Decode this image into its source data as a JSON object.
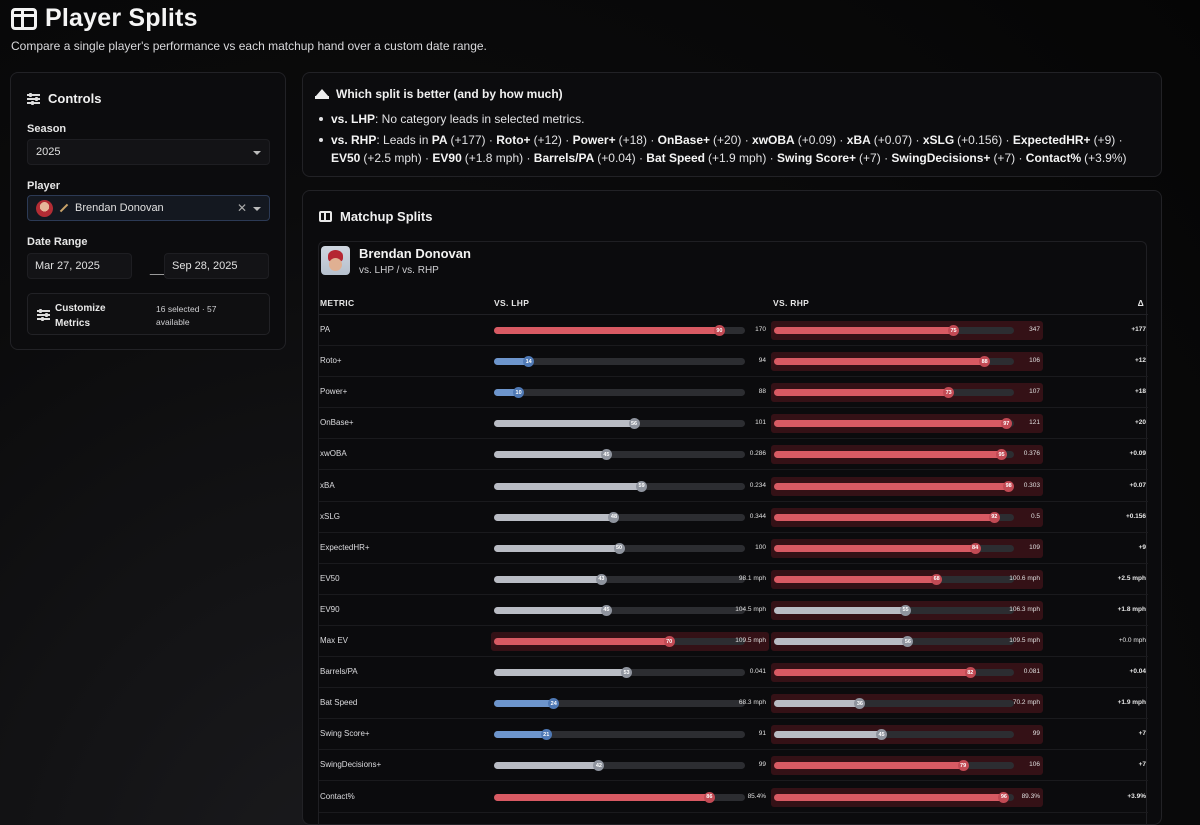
{
  "header": {
    "title": "Player Splits",
    "subtitle": "Compare a single player's performance vs each matchup hand over a custom date range."
  },
  "controls": {
    "title": "Controls",
    "season_label": "Season",
    "season_value": "2025",
    "player_label": "Player",
    "player_value": "Brendan Donovan",
    "date_label": "Date Range",
    "date_start": "Mar 27, 2025",
    "date_end": "Sep 28, 2025",
    "customize_label": "Customize Metrics",
    "customize_status": "16 selected · 57 available"
  },
  "better": {
    "title": "Which split is better (and by how much)",
    "lhp_label": "vs. LHP",
    "lhp_text": ": No category leads in selected metrics.",
    "rhp_label": "vs. RHP",
    "rhp_prefix": ": Leads in ",
    "rhp_leads": [
      {
        "metric": "PA",
        "delta": "(+177)"
      },
      {
        "metric": "Roto+",
        "delta": "(+12)"
      },
      {
        "metric": "Power+",
        "delta": "(+18)"
      },
      {
        "metric": "OnBase+",
        "delta": "(+20)"
      },
      {
        "metric": "xwOBA",
        "delta": "(+0.09)"
      },
      {
        "metric": "xBA",
        "delta": "(+0.07)"
      },
      {
        "metric": "xSLG",
        "delta": "(+0.156)"
      },
      {
        "metric": "ExpectedHR+",
        "delta": "(+9)"
      },
      {
        "metric": "EV50",
        "delta": "(+2.5 mph)"
      },
      {
        "metric": "EV90",
        "delta": "(+1.8 mph)"
      },
      {
        "metric": "Barrels/PA",
        "delta": "(+0.04)"
      },
      {
        "metric": "Bat Speed",
        "delta": "(+1.9 mph)"
      },
      {
        "metric": "Swing Score+",
        "delta": "(+7)"
      },
      {
        "metric": "SwingDecisions+",
        "delta": "(+7)"
      },
      {
        "metric": "Contact%",
        "delta": "(+3.9%)"
      }
    ]
  },
  "matchup": {
    "title": "Matchup Splits",
    "player_name": "Brendan Donovan",
    "player_sub": "vs. LHP / vs. RHP",
    "col_metric": "METRIC",
    "col_lhp": "VS. LHP",
    "col_rhp": "VS. RHP",
    "col_delta": "Δ",
    "colors": {
      "red": "#d85a63",
      "gray": "#b9bcc4",
      "blue": "#6d95cc"
    },
    "rows": [
      {
        "metric": "PA",
        "lhp_pct": 90,
        "lhp_val": "170",
        "lhp_color": "red",
        "rhp_pct": 75,
        "rhp_val": "347",
        "rhp_color": "red",
        "delta": "+177",
        "winner": "rhp"
      },
      {
        "metric": "Roto+",
        "lhp_pct": 14,
        "lhp_val": "94",
        "lhp_color": "blue",
        "rhp_pct": 88,
        "rhp_val": "106",
        "rhp_color": "red",
        "delta": "+12",
        "winner": "rhp"
      },
      {
        "metric": "Power+",
        "lhp_pct": 10,
        "lhp_val": "88",
        "lhp_color": "blue",
        "rhp_pct": 73,
        "rhp_val": "107",
        "rhp_color": "red",
        "delta": "+18",
        "winner": "rhp"
      },
      {
        "metric": "OnBase+",
        "lhp_pct": 56,
        "lhp_val": "101",
        "lhp_color": "gray",
        "rhp_pct": 97,
        "rhp_val": "121",
        "rhp_color": "red",
        "delta": "+20",
        "winner": "rhp"
      },
      {
        "metric": "xwOBA",
        "lhp_pct": 45,
        "lhp_val": "0.286",
        "lhp_color": "gray",
        "rhp_pct": 95,
        "rhp_val": "0.376",
        "rhp_color": "red",
        "delta": "+0.09",
        "winner": "rhp"
      },
      {
        "metric": "xBA",
        "lhp_pct": 59,
        "lhp_val": "0.234",
        "lhp_color": "gray",
        "rhp_pct": 98,
        "rhp_val": "0.303",
        "rhp_color": "red",
        "delta": "+0.07",
        "winner": "rhp"
      },
      {
        "metric": "xSLG",
        "lhp_pct": 48,
        "lhp_val": "0.344",
        "lhp_color": "gray",
        "rhp_pct": 92,
        "rhp_val": "0.5",
        "rhp_color": "red",
        "delta": "+0.156",
        "winner": "rhp"
      },
      {
        "metric": "ExpectedHR+",
        "lhp_pct": 50,
        "lhp_val": "100",
        "lhp_color": "gray",
        "rhp_pct": 84,
        "rhp_val": "109",
        "rhp_color": "red",
        "delta": "+9",
        "winner": "rhp"
      },
      {
        "metric": "EV50",
        "lhp_pct": 43,
        "lhp_val": "98.1 mph",
        "lhp_color": "gray",
        "rhp_pct": 68,
        "rhp_val": "100.6 mph",
        "rhp_color": "red",
        "delta": "+2.5 mph",
        "winner": "rhp"
      },
      {
        "metric": "EV90",
        "lhp_pct": 45,
        "lhp_val": "104.5 mph",
        "lhp_color": "gray",
        "rhp_pct": 55,
        "rhp_val": "106.3 mph",
        "rhp_color": "gray",
        "delta": "+1.8 mph",
        "winner": "rhp"
      },
      {
        "metric": "Max EV",
        "lhp_pct": 70,
        "lhp_val": "109.5 mph",
        "lhp_color": "red",
        "rhp_pct": 56,
        "rhp_val": "109.5 mph",
        "rhp_color": "gray",
        "delta": "+0.0 mph",
        "winner": "both"
      },
      {
        "metric": "Barrels/PA",
        "lhp_pct": 53,
        "lhp_val": "0.041",
        "lhp_color": "gray",
        "rhp_pct": 82,
        "rhp_val": "0.081",
        "rhp_color": "red",
        "delta": "+0.04",
        "winner": "rhp"
      },
      {
        "metric": "Bat Speed",
        "lhp_pct": 24,
        "lhp_val": "68.3 mph",
        "lhp_color": "blue",
        "rhp_pct": 36,
        "rhp_val": "70.2 mph",
        "rhp_color": "gray",
        "delta": "+1.9 mph",
        "winner": "rhp"
      },
      {
        "metric": "Swing Score+",
        "lhp_pct": 21,
        "lhp_val": "91",
        "lhp_color": "blue",
        "rhp_pct": 45,
        "rhp_val": "99",
        "rhp_color": "gray",
        "delta": "+7",
        "winner": "rhp"
      },
      {
        "metric": "SwingDecisions+",
        "lhp_pct": 42,
        "lhp_val": "99",
        "lhp_color": "gray",
        "rhp_pct": 79,
        "rhp_val": "106",
        "rhp_color": "red",
        "delta": "+7",
        "winner": "rhp"
      },
      {
        "metric": "Contact%",
        "lhp_pct": 86,
        "lhp_val": "85.4%",
        "lhp_color": "red",
        "rhp_pct": 96,
        "rhp_val": "89.3%",
        "rhp_color": "red",
        "delta": "+3.9%",
        "winner": "rhp"
      }
    ]
  }
}
